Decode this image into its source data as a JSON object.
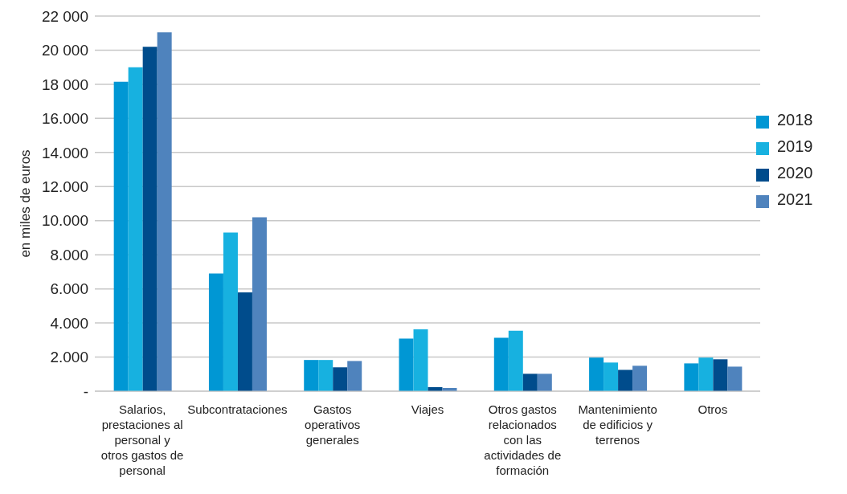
{
  "chart_data": {
    "type": "bar",
    "ylabel": "en miles de euros",
    "categories": [
      "Salarios, prestaciones al personal y otros gastos de personal",
      "Subcontrataciones",
      "Gastos operativos generales",
      "Viajes",
      "Otros gastos relacionados con las actividades de formación",
      "Mantenimiento de edificios y terrenos",
      "Otros"
    ],
    "series": [
      {
        "name": "2018",
        "color": "#0097d4",
        "values": [
          18150,
          6900,
          1830,
          3080,
          3130,
          1970,
          1630
        ]
      },
      {
        "name": "2019",
        "color": "#17b1e0",
        "values": [
          19000,
          9300,
          1830,
          3630,
          3540,
          1680,
          1970
        ]
      },
      {
        "name": "2020",
        "color": "#004c8c",
        "values": [
          20200,
          5800,
          1400,
          240,
          1020,
          1250,
          1870
        ]
      },
      {
        "name": "2021",
        "color": "#4f83bd",
        "values": [
          21050,
          10200,
          1770,
          190,
          1020,
          1490,
          1440
        ]
      }
    ],
    "ylim": [
      0,
      22000
    ],
    "yticks": [
      {
        "value": 0,
        "label": "-"
      },
      {
        "value": 2000,
        "label": "2.000"
      },
      {
        "value": 4000,
        "label": "4.000"
      },
      {
        "value": 6000,
        "label": "6.000"
      },
      {
        "value": 8000,
        "label": "8.000"
      },
      {
        "value": 10000,
        "label": "10.000"
      },
      {
        "value": 12000,
        "label": "12.000"
      },
      {
        "value": 14000,
        "label": "14.000"
      },
      {
        "value": 16000,
        "label": "16.000"
      },
      {
        "value": 18000,
        "label": "18 000"
      },
      {
        "value": 20000,
        "label": "20 000"
      },
      {
        "value": 22000,
        "label": "22 000"
      }
    ],
    "grid": "y",
    "legend": "right"
  }
}
